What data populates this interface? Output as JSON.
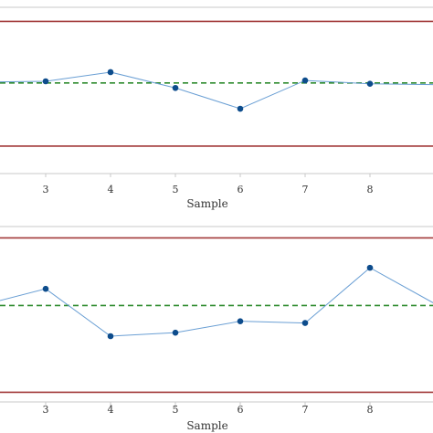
{
  "colors": {
    "background": "#ffffff",
    "frame": "#c8c8c8",
    "control_limit": "#a33a3a",
    "center_line": "#2e8b2e",
    "series_line": "#6a9fd4",
    "marker": "#0d4c8c",
    "tick_text": "#333333"
  },
  "chart_data": [
    {
      "type": "line",
      "title": "",
      "xlabel": "Sample",
      "ylabel": "",
      "x": [
        2,
        3,
        4,
        5,
        6,
        7,
        8,
        9
      ],
      "xticks": [
        3,
        4,
        5,
        6,
        7,
        8
      ],
      "xlim": [
        2.3,
        9.0
      ],
      "ylim": [
        0,
        1
      ],
      "grid": false,
      "series": [
        {
          "values": [
            0.55,
            0.555,
            0.61,
            0.515,
            0.39,
            0.56,
            0.54,
            0.535
          ]
        }
      ],
      "center_line": 0.545,
      "upper_control_limit": 0.915,
      "lower_control_limit": 0.165
    },
    {
      "type": "line",
      "title": "",
      "xlabel": "Sample",
      "ylabel": "",
      "x": [
        2,
        3,
        4,
        5,
        6,
        7,
        8,
        9
      ],
      "xticks": [
        3,
        4,
        5,
        6,
        7,
        8
      ],
      "xlim": [
        2.3,
        9.0
      ],
      "ylim": [
        0,
        1
      ],
      "grid": false,
      "series": [
        {
          "values": [
            0.55,
            0.645,
            0.375,
            0.395,
            0.46,
            0.45,
            0.765,
            0.56
          ]
        }
      ],
      "center_line": 0.55,
      "upper_control_limit": 0.935,
      "lower_control_limit": 0.055
    }
  ]
}
